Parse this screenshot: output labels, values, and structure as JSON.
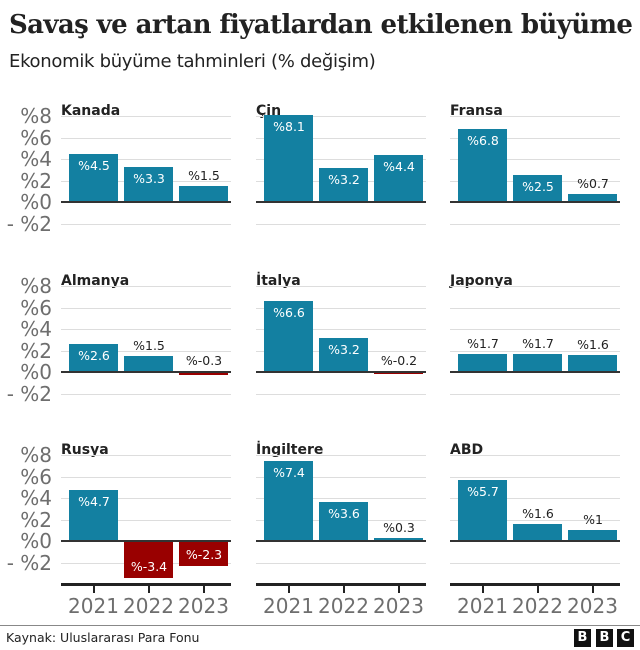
{
  "header": {
    "title": "Savaş ve artan fiyatlardan etkilenen büyüme",
    "subtitle": "Ekonomik büyüme tahminleri (% değişim)"
  },
  "footer": {
    "source": "Kaynak: Uluslararası Para Fonu",
    "logo": [
      "B",
      "B",
      "C"
    ]
  },
  "colors": {
    "positive": "#1380a1",
    "negative": "#990000",
    "grid": "#dddddd",
    "axis": "#333333",
    "tick_text": "#6e6e6e"
  },
  "axis": {
    "y_ticks": [
      "%8",
      "%6",
      "%4",
      "%2",
      "%0",
      "- %2"
    ],
    "x_ticks": [
      "2021",
      "2022",
      "2023"
    ]
  },
  "panels": [
    {
      "name": "Kanada",
      "labels": [
        "%4.5",
        "%3.3",
        "%1.5"
      ]
    },
    {
      "name": "Çin",
      "labels": [
        "%8.1",
        "%3.2",
        "%4.4"
      ]
    },
    {
      "name": "Fransa",
      "labels": [
        "%6.8",
        "%2.5",
        "%0.7"
      ]
    },
    {
      "name": "Almanya",
      "labels": [
        "%2.6",
        "%1.5",
        "%-0.3"
      ]
    },
    {
      "name": "İtalya",
      "labels": [
        "%6.6",
        "%3.2",
        "%-0.2"
      ]
    },
    {
      "name": "Japonya",
      "labels": [
        "%1.7",
        "%1.7",
        "%1.6"
      ]
    },
    {
      "name": "Rusya",
      "labels": [
        "%4.7",
        "%-3.4",
        "%-2.3"
      ]
    },
    {
      "name": "İngiltere",
      "labels": [
        "%7.4",
        "%3.6",
        "%0.3"
      ]
    },
    {
      "name": "ABD",
      "labels": [
        "%5.7",
        "%1.6",
        "%1"
      ]
    }
  ],
  "chart_data": {
    "type": "bar",
    "title": "Savaş ve artan fiyatlardan etkilenen büyüme",
    "subtitle": "Ekonomik büyüme tahminleri (% değişim)",
    "xlabel": "",
    "ylabel": "% değişim",
    "categories": [
      "2021",
      "2022",
      "2023"
    ],
    "ylim": [
      -2,
      8
    ],
    "y_ticks": [
      -2,
      0,
      2,
      4,
      6,
      8
    ],
    "grid": true,
    "layout": "3x3 small multiples",
    "series": [
      {
        "name": "Kanada",
        "values": [
          4.5,
          3.3,
          1.5
        ]
      },
      {
        "name": "Çin",
        "values": [
          8.1,
          3.2,
          4.4
        ]
      },
      {
        "name": "Fransa",
        "values": [
          6.8,
          2.5,
          0.7
        ]
      },
      {
        "name": "Almanya",
        "values": [
          2.6,
          1.5,
          -0.3
        ]
      },
      {
        "name": "İtalya",
        "values": [
          6.6,
          3.2,
          -0.2
        ]
      },
      {
        "name": "Japonya",
        "values": [
          1.7,
          1.7,
          1.6
        ]
      },
      {
        "name": "Rusya",
        "values": [
          4.7,
          -3.4,
          -2.3
        ]
      },
      {
        "name": "İngiltere",
        "values": [
          7.4,
          3.6,
          0.3
        ]
      },
      {
        "name": "ABD",
        "values": [
          5.7,
          1.6,
          1
        ]
      }
    ],
    "source": "Kaynak: Uluslararası Para Fonu"
  }
}
